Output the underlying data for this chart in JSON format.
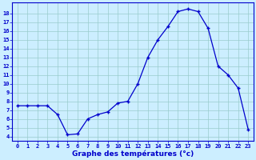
{
  "hours": [
    0,
    1,
    2,
    3,
    4,
    5,
    6,
    7,
    8,
    9,
    10,
    11,
    12,
    13,
    14,
    15,
    16,
    17,
    18,
    19,
    20,
    21,
    22,
    23
  ],
  "temps": [
    7.5,
    7.5,
    7.5,
    7.5,
    6.5,
    4.2,
    4.3,
    6.0,
    6.5,
    6.8,
    7.8,
    8.0,
    10.0,
    13.0,
    15.0,
    16.5,
    18.2,
    18.5,
    18.2,
    16.3,
    12.0,
    11.0,
    9.5,
    4.8
  ],
  "line_color": "#0000cc",
  "marker": "+",
  "marker_size": 3.5,
  "bg_color": "#cceeff",
  "grid_color": "#99cccc",
  "xlabel": "Graphe des températures (°c)",
  "xlabel_color": "#0000cc",
  "ylabel_ticks": [
    4,
    5,
    6,
    7,
    8,
    9,
    10,
    11,
    12,
    13,
    14,
    15,
    16,
    17,
    18
  ],
  "ylim": [
    3.5,
    19.2
  ],
  "xlim": [
    -0.5,
    23.5
  ],
  "tick_color": "#0000cc",
  "spine_color": "#0000cc",
  "tick_fontsize": 5.0,
  "xlabel_fontsize": 6.5,
  "linewidth": 0.9,
  "marker_lw": 1.0
}
